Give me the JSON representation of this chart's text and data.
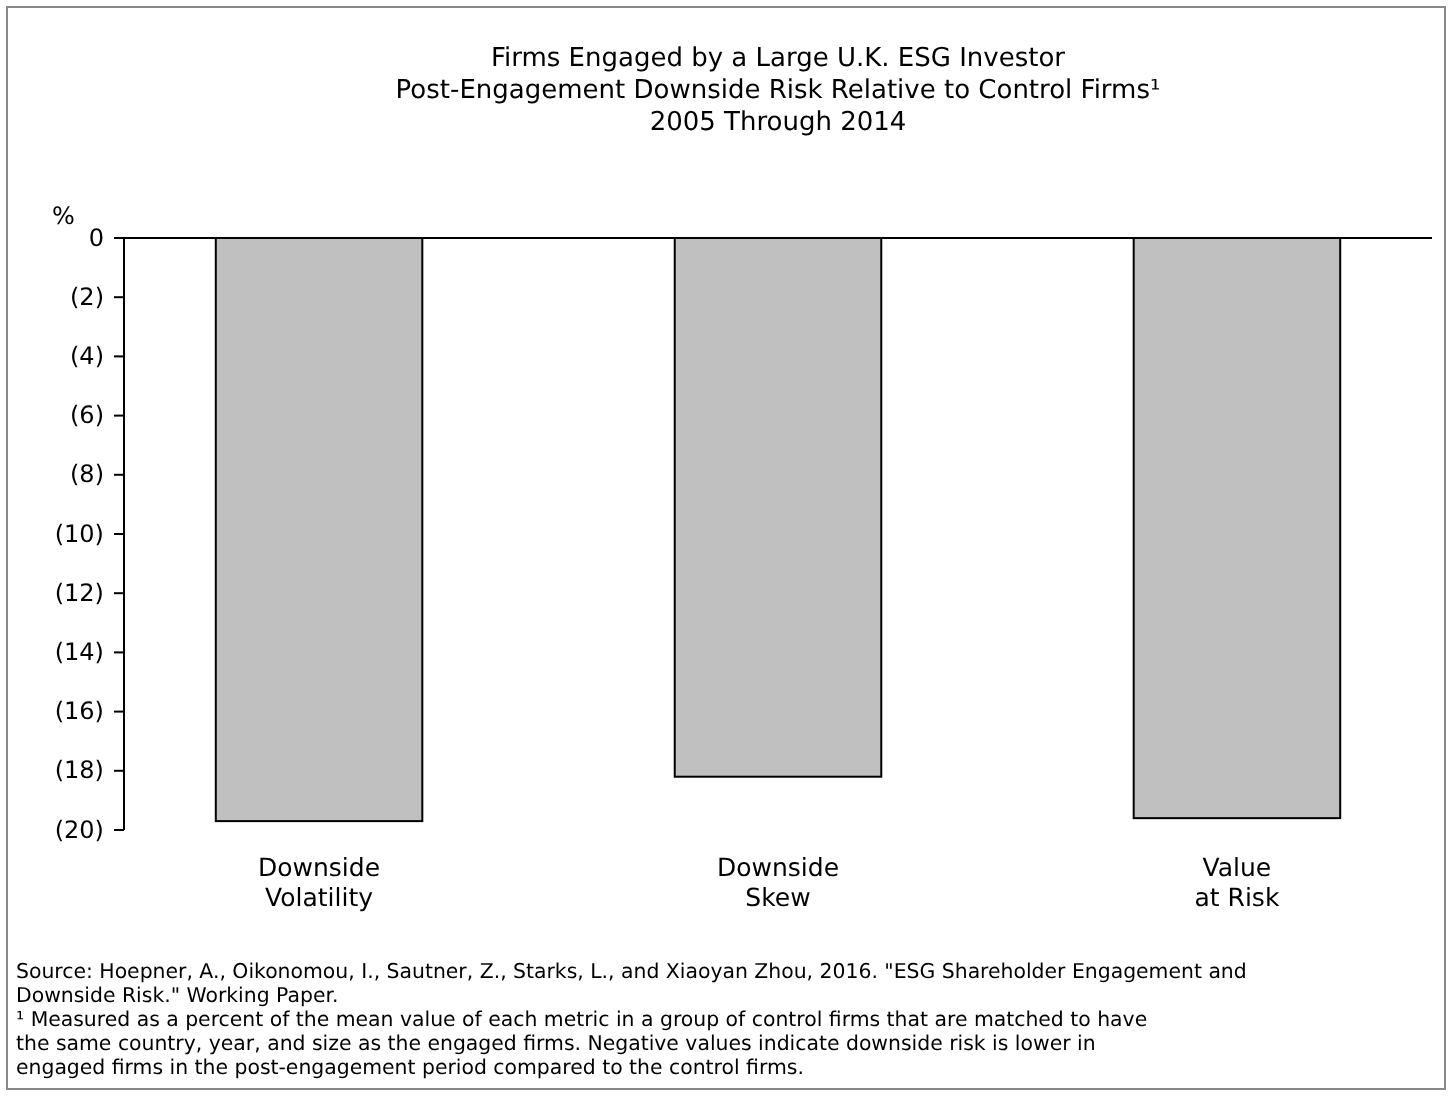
{
  "chart_data": {
    "type": "bar",
    "title": "Firms Engaged by a Large U.K. ESG Investor",
    "subtitle": "Post-Engagement Downside Risk Relative to Control Firms¹\n2005 Through 2014",
    "ylabel": "%",
    "categories": [
      "Downside\nVolatility",
      "Downside\nSkew",
      "Value\nat Risk"
    ],
    "values": [
      -19.7,
      -18.2,
      -19.6
    ],
    "color": "#c0c0c0",
    "ylim": [
      -20,
      0
    ],
    "yticks": [
      {
        "value": 0,
        "label": "0"
      },
      {
        "value": -2,
        "label": "(2)"
      },
      {
        "value": -4,
        "label": "(4)"
      },
      {
        "value": -6,
        "label": "(6)"
      },
      {
        "value": -8,
        "label": "(8)"
      },
      {
        "value": -10,
        "label": "(10)"
      },
      {
        "value": -12,
        "label": "(12)"
      },
      {
        "value": -14,
        "label": "(14)"
      },
      {
        "value": -16,
        "label": "(16)"
      },
      {
        "value": -18,
        "label": "(18)"
      },
      {
        "value": -20,
        "label": "(20)"
      }
    ],
    "grid": false,
    "annotations": [
      "Source: Hoepner, A., Oikonomou, I., Sautner, Z., Starks, L., and Xiaoyan Zhou, 2016.  \"ESG Shareholder Engagement and\nDownside Risk.\"  Working Paper.",
      "¹ Measured as a percent of the mean value of each metric in a group of control firms that are matched to have\nthe same country, year, and size as the engaged firms.  Negative values indicate downside risk is lower in\nengaged firms in the post-engagement period compared to the control firms."
    ]
  }
}
